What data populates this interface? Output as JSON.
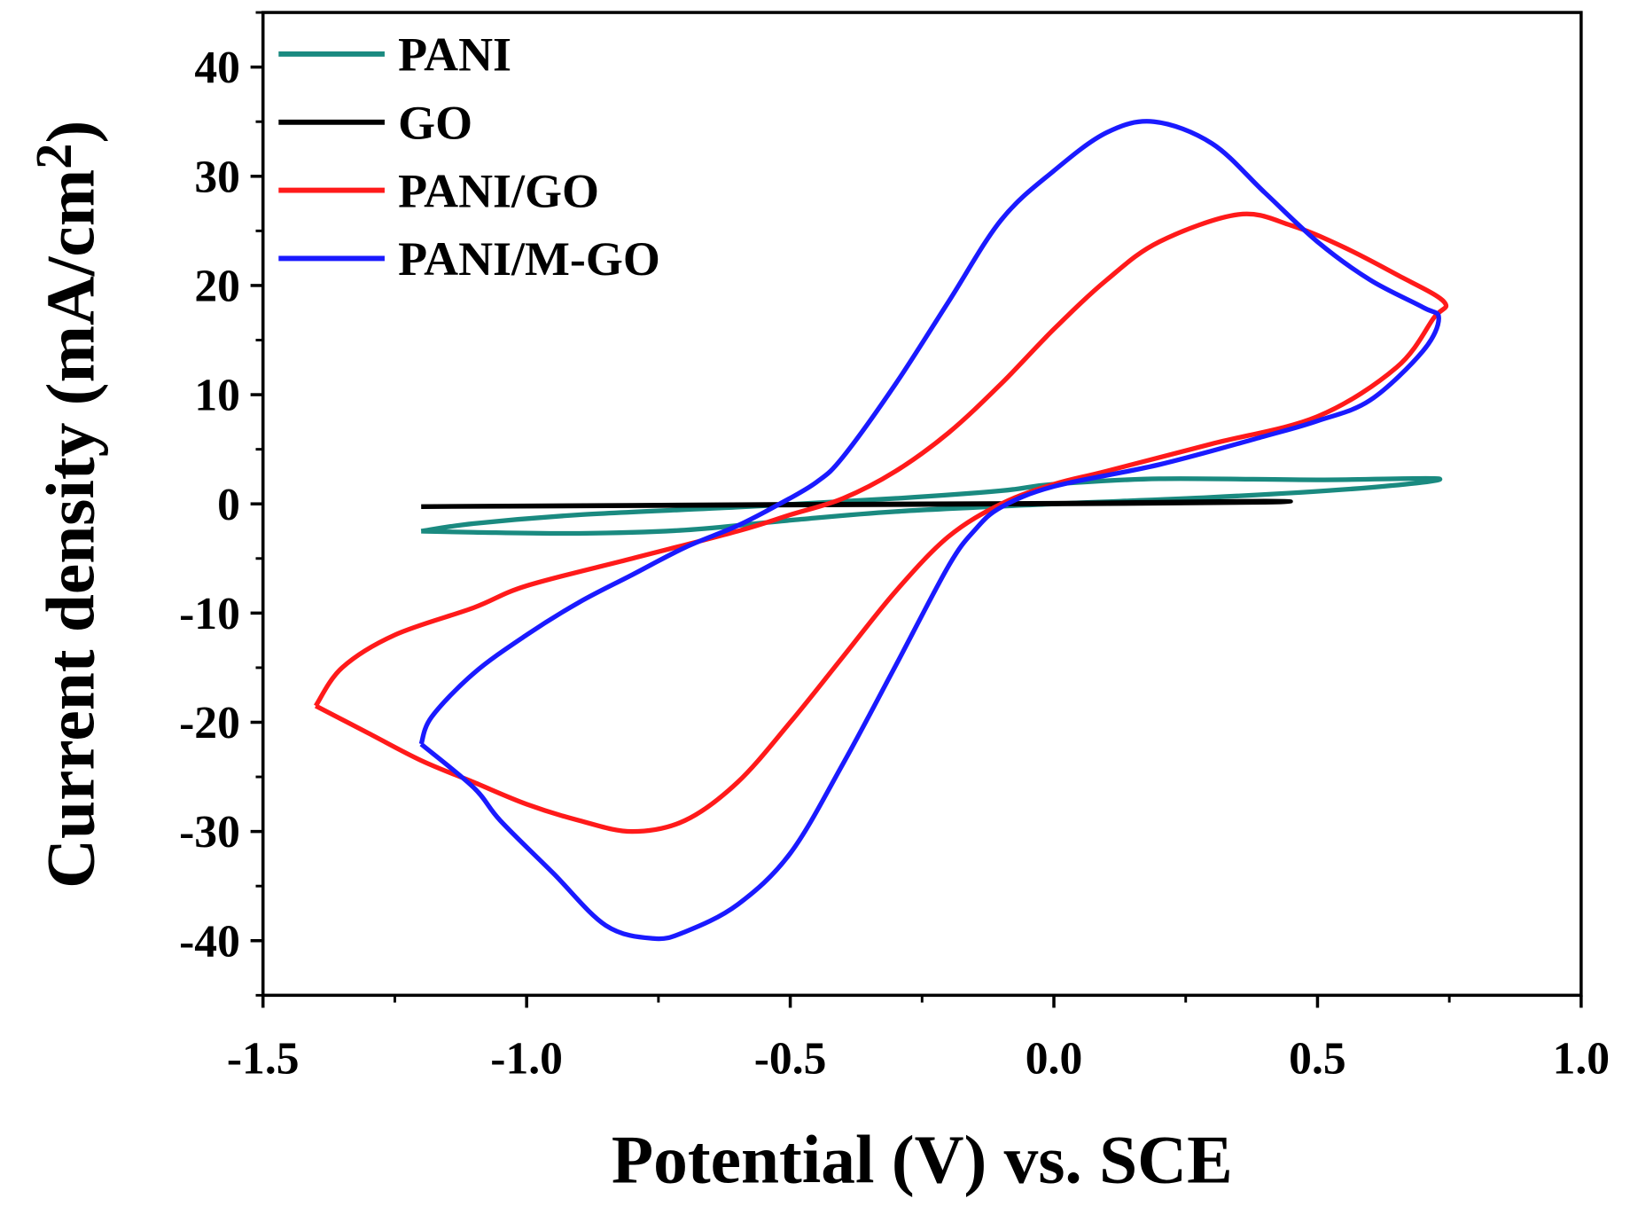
{
  "chart_data": {
    "type": "line",
    "title": "",
    "xlabel": "Potential (V) vs. SCE",
    "ylabel": "Current density (mA/cm",
    "ylabel_sup": "2",
    "ylabel_close": ")",
    "xlim": [
      -1.5,
      1.0
    ],
    "ylim": [
      -45,
      45
    ],
    "xticks": [
      -1.5,
      -1.0,
      -0.5,
      0.0,
      0.5,
      1.0
    ],
    "xtick_labels": [
      "-1.5",
      "-1.0",
      "-0.5",
      "0.0",
      "0.5",
      "1.0"
    ],
    "yticks": [
      40,
      30,
      20,
      10,
      0,
      -10,
      -20,
      -30,
      -40
    ],
    "ytick_labels": [
      "40",
      "30",
      "20",
      "10",
      "0",
      "-10",
      "-20",
      "-30",
      "-40"
    ],
    "grid": false,
    "legend_position": "top-left",
    "series": [
      {
        "name": "PANI",
        "color": "#1a8a80",
        "points": [
          [
            -1.2,
            -2.5
          ],
          [
            -1.1,
            -1.8
          ],
          [
            -0.9,
            -1
          ],
          [
            -0.6,
            -0.3
          ],
          [
            -0.3,
            0.5
          ],
          [
            -0.1,
            1.2
          ],
          [
            0,
            1.8
          ],
          [
            0.2,
            2.3
          ],
          [
            0.5,
            2.2
          ],
          [
            0.73,
            2.3
          ],
          [
            0.6,
            1.5
          ],
          [
            0.3,
            0.6
          ],
          [
            0,
            0
          ],
          [
            -0.3,
            -0.7
          ],
          [
            -0.5,
            -1.5
          ],
          [
            -0.7,
            -2.4
          ],
          [
            -0.9,
            -2.7
          ],
          [
            -1.1,
            -2.6
          ],
          [
            -1.2,
            -2.5
          ]
        ]
      },
      {
        "name": "GO",
        "color": "#000000",
        "points": [
          [
            -1.2,
            -0.2
          ],
          [
            -0.5,
            0
          ],
          [
            0,
            0.1
          ],
          [
            0.4,
            0.3
          ],
          [
            0.4,
            0.1
          ],
          [
            0,
            -0.05
          ],
          [
            -0.5,
            -0.15
          ],
          [
            -1.2,
            -0.3
          ]
        ]
      },
      {
        "name": "PANI/GO",
        "color": "#ff1a1a",
        "points": [
          [
            -1.4,
            -18.5
          ],
          [
            -1.35,
            -15
          ],
          [
            -1.25,
            -12
          ],
          [
            -1.1,
            -9.5
          ],
          [
            -1.0,
            -7.5
          ],
          [
            -0.8,
            -5
          ],
          [
            -0.6,
            -2.5
          ],
          [
            -0.5,
            -1
          ],
          [
            -0.4,
            0.5
          ],
          [
            -0.3,
            3
          ],
          [
            -0.2,
            6.5
          ],
          [
            -0.1,
            11
          ],
          [
            0,
            16
          ],
          [
            0.1,
            20.5
          ],
          [
            0.2,
            24
          ],
          [
            0.35,
            26.5
          ],
          [
            0.45,
            25.5
          ],
          [
            0.55,
            23.5
          ],
          [
            0.65,
            21
          ],
          [
            0.74,
            18.5
          ],
          [
            0.72,
            17
          ],
          [
            0.65,
            12.5
          ],
          [
            0.5,
            8
          ],
          [
            0.3,
            5.5
          ],
          [
            0.1,
            3
          ],
          [
            0,
            1.8
          ],
          [
            -0.1,
            0
          ],
          [
            -0.2,
            -3
          ],
          [
            -0.3,
            -8
          ],
          [
            -0.4,
            -14
          ],
          [
            -0.5,
            -20
          ],
          [
            -0.6,
            -25.5
          ],
          [
            -0.7,
            -29
          ],
          [
            -0.8,
            -30
          ],
          [
            -0.9,
            -29
          ],
          [
            -1.0,
            -27.5
          ],
          [
            -1.1,
            -25.5
          ],
          [
            -1.2,
            -23.5
          ],
          [
            -1.3,
            -21
          ],
          [
            -1.4,
            -18.5
          ]
        ]
      },
      {
        "name": "PANI/M-GO",
        "color": "#1a1aff",
        "points": [
          [
            -1.2,
            -22
          ],
          [
            -1.18,
            -19.5
          ],
          [
            -1.1,
            -15.5
          ],
          [
            -1.0,
            -12
          ],
          [
            -0.9,
            -9
          ],
          [
            -0.8,
            -6.5
          ],
          [
            -0.7,
            -4
          ],
          [
            -0.6,
            -2
          ],
          [
            -0.52,
            0
          ],
          [
            -0.45,
            2
          ],
          [
            -0.4,
            4.3
          ],
          [
            -0.3,
            11
          ],
          [
            -0.2,
            18.5
          ],
          [
            -0.1,
            26
          ],
          [
            0,
            30.5
          ],
          [
            0.1,
            34
          ],
          [
            0.19,
            35
          ],
          [
            0.3,
            33
          ],
          [
            0.4,
            28.5
          ],
          [
            0.5,
            24
          ],
          [
            0.6,
            20.5
          ],
          [
            0.7,
            18
          ],
          [
            0.73,
            17
          ],
          [
            0.7,
            14
          ],
          [
            0.6,
            9.5
          ],
          [
            0.5,
            7.6
          ],
          [
            0.4,
            6.2
          ],
          [
            0.2,
            3.6
          ],
          [
            0,
            1.6
          ],
          [
            -0.1,
            -0.3
          ],
          [
            -0.15,
            -2.4
          ],
          [
            -0.2,
            -5.7
          ],
          [
            -0.3,
            -14.8
          ],
          [
            -0.4,
            -23.8
          ],
          [
            -0.5,
            -32
          ],
          [
            -0.6,
            -36.7
          ],
          [
            -0.7,
            -39.2
          ],
          [
            -0.76,
            -39.8
          ],
          [
            -0.85,
            -38.6
          ],
          [
            -0.95,
            -33.8
          ],
          [
            -1.05,
            -29
          ],
          [
            -1.1,
            -26
          ],
          [
            -1.2,
            -22
          ]
        ]
      }
    ]
  }
}
